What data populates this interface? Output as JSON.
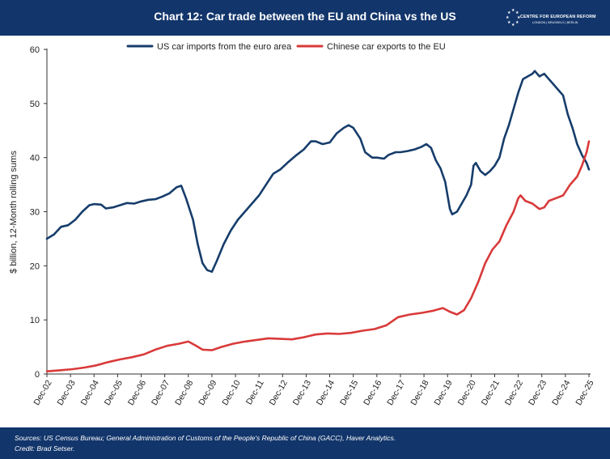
{
  "header": {
    "title": "Chart 12: Car trade between the EU and China vs the US",
    "logo_text": "CENTRE FOR EUROPEAN REFORM",
    "logo_cities": "LONDON | BRUSSELS | BERLIN"
  },
  "footer": {
    "sources": "Sources: US Census Bureau; General Administration of Customs of the People's Republic of China (GACC), Haver Analytics.",
    "credit": "Credit: Brad Setser."
  },
  "colors": {
    "header_bg": "#12356b",
    "us_series": "#163d6b",
    "china_series": "#d93a3a"
  },
  "chart_data": {
    "type": "line",
    "title": "",
    "xlabel": "",
    "ylabel": "$ billion, 12-Month rolling sums",
    "ylim": [
      0,
      60
    ],
    "yticks": [
      0,
      10,
      20,
      30,
      40,
      50,
      60
    ],
    "xticks": [
      "Dec-02",
      "Dec-03",
      "Dec-04",
      "Dec-05",
      "Dec-06",
      "Dec-07",
      "Dec-08",
      "Dec-09",
      "Dec-10",
      "Dec-11",
      "Dec-12",
      "Dec-13",
      "Dec-14",
      "Dec-15",
      "Dec-16",
      "Dec-17",
      "Dec-18",
      "Dec-19",
      "Dec-20",
      "Dec-21",
      "Dec-22",
      "Dec-23",
      "Dec-24",
      "Dec-25"
    ],
    "xlim": [
      2002.9,
      2025.9
    ],
    "grid": false,
    "legend_position": "top",
    "series": [
      {
        "name": "US car imports from the euro area",
        "color": "#163d6b",
        "points": [
          [
            2002.9,
            25.0
          ],
          [
            2003.2,
            25.8
          ],
          [
            2003.5,
            27.2
          ],
          [
            2003.8,
            27.5
          ],
          [
            2004.1,
            28.5
          ],
          [
            2004.4,
            30.0
          ],
          [
            2004.7,
            31.2
          ],
          [
            2004.9,
            31.4
          ],
          [
            2005.2,
            31.3
          ],
          [
            2005.4,
            30.6
          ],
          [
            2005.7,
            30.8
          ],
          [
            2006.0,
            31.2
          ],
          [
            2006.3,
            31.6
          ],
          [
            2006.6,
            31.5
          ],
          [
            2006.9,
            31.9
          ],
          [
            2007.2,
            32.2
          ],
          [
            2007.5,
            32.3
          ],
          [
            2007.8,
            32.8
          ],
          [
            2008.1,
            33.4
          ],
          [
            2008.4,
            34.5
          ],
          [
            2008.6,
            34.8
          ],
          [
            2008.8,
            32.5
          ],
          [
            2009.1,
            28.5
          ],
          [
            2009.3,
            24.0
          ],
          [
            2009.5,
            20.5
          ],
          [
            2009.7,
            19.2
          ],
          [
            2009.9,
            18.9
          ],
          [
            2010.1,
            20.8
          ],
          [
            2010.4,
            24.0
          ],
          [
            2010.7,
            26.5
          ],
          [
            2011.0,
            28.5
          ],
          [
            2011.3,
            30.0
          ],
          [
            2011.6,
            31.5
          ],
          [
            2011.9,
            33.0
          ],
          [
            2012.2,
            35.0
          ],
          [
            2012.5,
            37.0
          ],
          [
            2012.8,
            37.8
          ],
          [
            2013.1,
            39.0
          ],
          [
            2013.5,
            40.5
          ],
          [
            2013.8,
            41.5
          ],
          [
            2014.1,
            43.0
          ],
          [
            2014.3,
            43.0
          ],
          [
            2014.6,
            42.5
          ],
          [
            2014.9,
            42.8
          ],
          [
            2015.2,
            44.5
          ],
          [
            2015.5,
            45.5
          ],
          [
            2015.7,
            46.0
          ],
          [
            2015.9,
            45.5
          ],
          [
            2016.2,
            43.5
          ],
          [
            2016.4,
            41.0
          ],
          [
            2016.7,
            40.0
          ],
          [
            2016.9,
            40.0
          ],
          [
            2017.2,
            39.8
          ],
          [
            2017.4,
            40.5
          ],
          [
            2017.7,
            41.0
          ],
          [
            2017.9,
            41.0
          ],
          [
            2018.2,
            41.2
          ],
          [
            2018.5,
            41.5
          ],
          [
            2018.8,
            42.0
          ],
          [
            2019.0,
            42.5
          ],
          [
            2019.2,
            41.8
          ],
          [
            2019.4,
            39.5
          ],
          [
            2019.6,
            38.0
          ],
          [
            2019.8,
            35.5
          ],
          [
            2020.0,
            30.5
          ],
          [
            2020.1,
            29.5
          ],
          [
            2020.3,
            30.0
          ],
          [
            2020.5,
            31.5
          ],
          [
            2020.7,
            33.0
          ],
          [
            2020.9,
            35.0
          ],
          [
            2021.0,
            38.5
          ],
          [
            2021.1,
            39.0
          ],
          [
            2021.3,
            37.5
          ],
          [
            2021.5,
            36.8
          ],
          [
            2021.7,
            37.5
          ],
          [
            2021.9,
            38.5
          ],
          [
            2022.1,
            40.0
          ],
          [
            2022.3,
            43.5
          ],
          [
            2022.5,
            46.0
          ],
          [
            2022.7,
            49.0
          ],
          [
            2022.9,
            52.0
          ],
          [
            2023.1,
            54.5
          ],
          [
            2023.3,
            55.0
          ],
          [
            2023.5,
            55.5
          ],
          [
            2023.6,
            56.0
          ],
          [
            2023.8,
            55.0
          ],
          [
            2024.0,
            55.5
          ],
          [
            2024.2,
            54.5
          ],
          [
            2024.4,
            53.5
          ],
          [
            2024.6,
            52.5
          ],
          [
            2024.8,
            51.5
          ],
          [
            2025.0,
            48.0
          ],
          [
            2025.2,
            45.5
          ],
          [
            2025.4,
            42.5
          ],
          [
            2025.6,
            40.5
          ],
          [
            2025.8,
            39.0
          ],
          [
            2025.9,
            37.8
          ]
        ]
      },
      {
        "name": "Chinese car exports to the EU",
        "color": "#d93a3a",
        "points": [
          [
            2002.9,
            0.5
          ],
          [
            2003.5,
            0.7
          ],
          [
            2004.0,
            0.9
          ],
          [
            2004.5,
            1.2
          ],
          [
            2005.0,
            1.6
          ],
          [
            2005.5,
            2.2
          ],
          [
            2006.0,
            2.7
          ],
          [
            2006.5,
            3.1
          ],
          [
            2007.0,
            3.6
          ],
          [
            2007.5,
            4.5
          ],
          [
            2008.0,
            5.2
          ],
          [
            2008.5,
            5.6
          ],
          [
            2008.9,
            6.0
          ],
          [
            2009.2,
            5.3
          ],
          [
            2009.5,
            4.5
          ],
          [
            2009.9,
            4.4
          ],
          [
            2010.3,
            5.0
          ],
          [
            2010.8,
            5.6
          ],
          [
            2011.3,
            6.0
          ],
          [
            2011.8,
            6.3
          ],
          [
            2012.3,
            6.6
          ],
          [
            2012.8,
            6.5
          ],
          [
            2013.3,
            6.4
          ],
          [
            2013.8,
            6.8
          ],
          [
            2014.3,
            7.3
          ],
          [
            2014.8,
            7.5
          ],
          [
            2015.3,
            7.4
          ],
          [
            2015.8,
            7.6
          ],
          [
            2016.3,
            8.0
          ],
          [
            2016.8,
            8.3
          ],
          [
            2017.3,
            9.0
          ],
          [
            2017.8,
            10.5
          ],
          [
            2018.3,
            11.0
          ],
          [
            2018.8,
            11.3
          ],
          [
            2019.3,
            11.7
          ],
          [
            2019.7,
            12.2
          ],
          [
            2020.0,
            11.5
          ],
          [
            2020.3,
            11.0
          ],
          [
            2020.6,
            11.8
          ],
          [
            2020.9,
            14.0
          ],
          [
            2021.2,
            17.0
          ],
          [
            2021.5,
            20.5
          ],
          [
            2021.8,
            23.0
          ],
          [
            2022.1,
            24.5
          ],
          [
            2022.4,
            27.5
          ],
          [
            2022.7,
            30.0
          ],
          [
            2022.9,
            32.5
          ],
          [
            2023.0,
            33.0
          ],
          [
            2023.2,
            32.0
          ],
          [
            2023.5,
            31.5
          ],
          [
            2023.8,
            30.5
          ],
          [
            2024.0,
            30.8
          ],
          [
            2024.2,
            32.0
          ],
          [
            2024.5,
            32.5
          ],
          [
            2024.8,
            33.0
          ],
          [
            2025.1,
            35.0
          ],
          [
            2025.4,
            36.5
          ],
          [
            2025.6,
            38.5
          ],
          [
            2025.8,
            41.0
          ],
          [
            2025.9,
            43.0
          ]
        ]
      }
    ]
  }
}
